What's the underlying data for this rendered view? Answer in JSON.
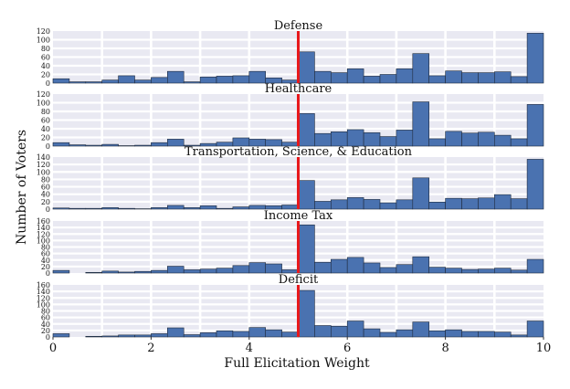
{
  "chart_data": {
    "type": "histogram",
    "bar_color": "#4a72b0",
    "bar_edge": "#1e2a3c",
    "marker_color": "#e8191c",
    "bg_color": "#e9e9f2",
    "grid_color": "#ffffff",
    "marker_x": 5,
    "xlabel": "Full Elicitation Weight",
    "ylabel": "Number of Voters",
    "xlim": [
      0,
      10
    ],
    "xticks": [
      "0",
      "2",
      "4",
      "6",
      "8",
      "10"
    ],
    "bin_width": 0.333,
    "panels": [
      {
        "title": "Defense",
        "ylim": [
          0,
          120
        ],
        "yticks": [
          "0",
          "20",
          "40",
          "60",
          "80",
          "100",
          "120"
        ],
        "values": [
          10,
          3,
          3,
          7,
          17,
          7,
          13,
          27,
          3,
          14,
          16,
          17,
          27,
          12,
          7,
          72,
          27,
          24,
          33,
          16,
          20,
          33,
          68,
          17,
          28,
          24,
          24,
          26,
          15,
          115
        ]
      },
      {
        "title": "Healthcare",
        "ylim": [
          0,
          120
        ],
        "yticks": [
          "0",
          "20",
          "40",
          "60",
          "80",
          "100",
          "120"
        ],
        "values": [
          8,
          3,
          2,
          4,
          1,
          2,
          8,
          16,
          2,
          6,
          9,
          19,
          16,
          15,
          9,
          75,
          29,
          33,
          38,
          31,
          22,
          37,
          102,
          17,
          34,
          30,
          32,
          25,
          17,
          96
        ]
      },
      {
        "title": "Transportation, Science, & Education",
        "ylim": [
          0,
          140
        ],
        "yticks": [
          "0",
          "20",
          "40",
          "60",
          "80",
          "100",
          "120",
          "140"
        ],
        "values": [
          3,
          2,
          2,
          4,
          2,
          1,
          4,
          10,
          4,
          9,
          2,
          6,
          10,
          9,
          11,
          77,
          21,
          25,
          31,
          26,
          17,
          25,
          84,
          19,
          29,
          28,
          30,
          39,
          28,
          134
        ]
      },
      {
        "title": "Income Tax",
        "ylim": [
          0,
          160
        ],
        "yticks": [
          "0",
          "20",
          "40",
          "60",
          "80",
          "100",
          "120",
          "140",
          "160"
        ],
        "values": [
          8,
          0,
          2,
          6,
          3,
          5,
          8,
          21,
          10,
          12,
          15,
          23,
          32,
          28,
          10,
          148,
          33,
          42,
          48,
          31,
          17,
          26,
          50,
          18,
          15,
          11,
          12,
          15,
          9,
          42
        ]
      },
      {
        "title": "Deficit",
        "ylim": [
          0,
          160
        ],
        "yticks": [
          "0",
          "20",
          "40",
          "60",
          "80",
          "100",
          "120",
          "140",
          "160"
        ],
        "values": [
          10,
          0,
          2,
          3,
          6,
          6,
          10,
          28,
          7,
          13,
          19,
          17,
          29,
          22,
          15,
          143,
          35,
          33,
          49,
          25,
          14,
          22,
          46,
          19,
          22,
          17,
          17,
          15,
          6,
          49
        ]
      }
    ]
  }
}
